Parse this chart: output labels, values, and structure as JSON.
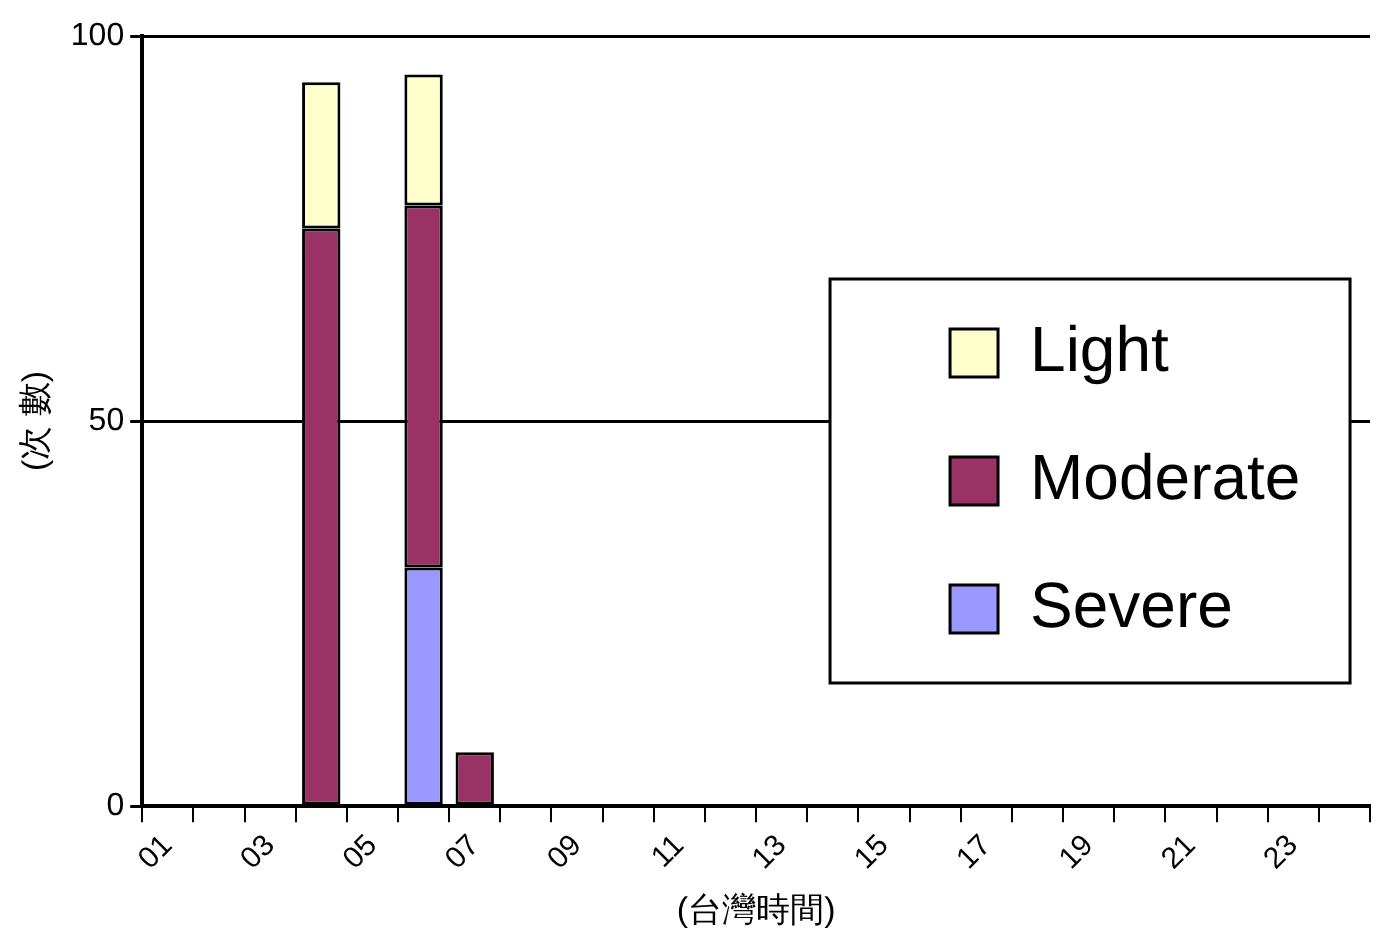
{
  "chart_data": {
    "type": "bar",
    "stacked": true,
    "xlabel": "(台灣時間)",
    "ylabel": "(次 數)",
    "categories": [
      "01",
      null,
      "03",
      null,
      "05",
      null,
      "07",
      null,
      "09",
      null,
      "11",
      null,
      "13",
      null,
      "15",
      null,
      "17",
      null,
      "19",
      null,
      "21",
      null,
      "23",
      null
    ],
    "series": [
      {
        "name": "Severe",
        "color": "#9999ff",
        "values": [
          0,
          0,
          0,
          0,
          0,
          31,
          0,
          0,
          0,
          0,
          0,
          0,
          0,
          0,
          0,
          0,
          0,
          0,
          0,
          0,
          0,
          0,
          0,
          0
        ]
      },
      {
        "name": "Moderate",
        "color": "#993366",
        "values": [
          0,
          0,
          0,
          75,
          0,
          47,
          7,
          0,
          0,
          0,
          0,
          0,
          0,
          0,
          0,
          0,
          0,
          0,
          0,
          0,
          0,
          0,
          0,
          0
        ]
      },
      {
        "name": "Light",
        "color": "#ffffcc",
        "values": [
          0,
          0,
          0,
          19,
          0,
          17,
          0,
          0,
          0,
          0,
          0,
          0,
          0,
          0,
          0,
          0,
          0,
          0,
          0,
          0,
          0,
          0,
          0,
          0
        ]
      }
    ],
    "ylim": [
      0,
      100
    ],
    "yticks": [
      0,
      50,
      100
    ],
    "grid": "y",
    "legend": "right"
  }
}
